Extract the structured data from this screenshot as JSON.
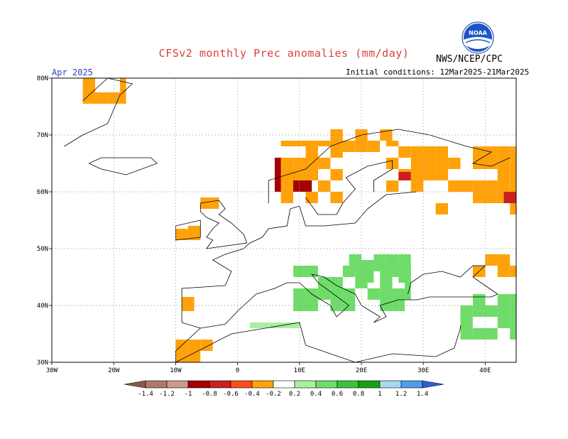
{
  "title": "CFSv2 monthly Prec anomalies (mm/day)",
  "agency": "NWS/NCEP/CPC",
  "logo_text": "NOAA",
  "month": "Apr 2025",
  "initial_conditions": "Initial conditions: 12Mar2025-21Mar2025",
  "axes": {
    "lon_labels": [
      "30W",
      "20W",
      "10W",
      "0",
      "10E",
      "20E",
      "30E",
      "40E"
    ],
    "lat_labels": [
      "80N",
      "70N",
      "60N",
      "50N",
      "40N",
      "30N"
    ]
  },
  "colorbar": {
    "labels": [
      "-1.4",
      "-1.2",
      "-1",
      "-0.8",
      "-0.6",
      "-0.4",
      "-0.2",
      "0.2",
      "0.4",
      "0.6",
      "0.8",
      "1",
      "1.2",
      "1.4"
    ],
    "colors": [
      "#8b5a4a",
      "#b07a68",
      "#c99b8d",
      "#a40000",
      "#cc1f1f",
      "#ff4b1a",
      "#ffa20a",
      "#ffffff",
      "#a8f0a0",
      "#6fdc6a",
      "#3cc13c",
      "#14a314",
      "#a8d6f5",
      "#4f9cf0",
      "#2a5fd8"
    ]
  },
  "map_data": {
    "projection": "lat-lon",
    "lon_range": [
      -30,
      45
    ],
    "lat_range": [
      30,
      80
    ],
    "grid": true,
    "anomaly_regions": [
      {
        "name": "E Greenland",
        "level": -0.3,
        "lon": [
          -25,
          -18
        ],
        "lat": [
          75.5,
          80
        ]
      },
      {
        "name": "W Norway coast",
        "level": -0.8,
        "lon": [
          6,
          13
        ],
        "lat": [
          60,
          66
        ]
      },
      {
        "name": "Norway",
        "level": -0.3,
        "lon": [
          7,
          17
        ],
        "lat": [
          58,
          69
        ]
      },
      {
        "name": "N Scandinavia",
        "level": -0.3,
        "lon": [
          15,
          25
        ],
        "lat": [
          67,
          71
        ]
      },
      {
        "name": "Finland-Karelia",
        "level": -0.3,
        "lon": [
          24,
          32
        ],
        "lat": [
          60,
          69
        ]
      },
      {
        "name": "Finland core",
        "level": -0.6,
        "lon": [
          26,
          29
        ],
        "lat": [
          62,
          63.5
        ]
      },
      {
        "name": "NW Russia",
        "level": -0.3,
        "lon": [
          32,
          45
        ],
        "lat": [
          56,
          68
        ]
      },
      {
        "name": "NW Russia core",
        "level": -0.6,
        "lon": [
          41,
          45
        ],
        "lat": [
          58,
          60
        ]
      },
      {
        "name": "Ireland",
        "level": -0.3,
        "lon": [
          -10,
          -6
        ],
        "lat": [
          51.5,
          54
        ]
      },
      {
        "name": "Scotland",
        "level": -0.3,
        "lon": [
          -6,
          -3
        ],
        "lat": [
          57,
          59
        ]
      },
      {
        "name": "Iberia",
        "level": -0.3,
        "lon": [
          -9,
          -7
        ],
        "lat": [
          39,
          41.5
        ]
      },
      {
        "name": "Morocco",
        "level": -0.3,
        "lon": [
          -10,
          -4
        ],
        "lat": [
          30,
          34
        ]
      },
      {
        "name": "Alps-Balkans",
        "level": 0.5,
        "lon": [
          9,
          28
        ],
        "lat": [
          39,
          47
        ]
      },
      {
        "name": "Hungary-Romania",
        "level": 0.5,
        "lon": [
          18,
          28
        ],
        "lat": [
          44,
          49
        ]
      },
      {
        "name": "Turkey-Caucasus",
        "level": 0.5,
        "lon": [
          36,
          45
        ],
        "lat": [
          34,
          42
        ]
      },
      {
        "name": "Sea of Azov",
        "level": -0.3,
        "lon": [
          36,
          45
        ],
        "lat": [
          45,
          49
        ]
      },
      {
        "name": "Algeria",
        "level": 0.3,
        "lon": [
          0,
          10
        ],
        "lat": [
          36,
          37
        ]
      }
    ]
  }
}
